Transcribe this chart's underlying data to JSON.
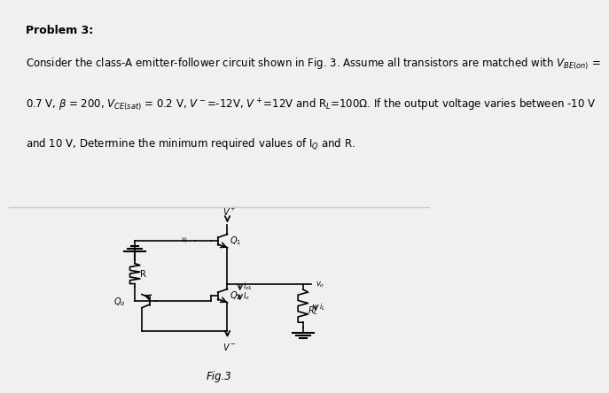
{
  "title_text": "Problem 3:",
  "body_text": "Consider the class-A emitter-follower circuit shown in Fig. 3. Assume all transistors are matched with Vᴃᴇ(on) =\n0.7 V, β = 200, Vᴄᴇ(sat) = 0.2 V, V⁻=-12V, V⁺=12V and Rₗ=100Ω. If the output voltage varies between -10 V\nand 10 V, Determine the minimum required values of I₀ and R.",
  "fig_label": "Fig.3",
  "bg_color": "#f0f0f0",
  "panel1_bg": "#ffffff",
  "panel2_bg": "#e8e8e8",
  "text_color": "#000000",
  "title_fontsize": 9,
  "body_fontsize": 8.5,
  "fig_label_fontsize": 8.5
}
